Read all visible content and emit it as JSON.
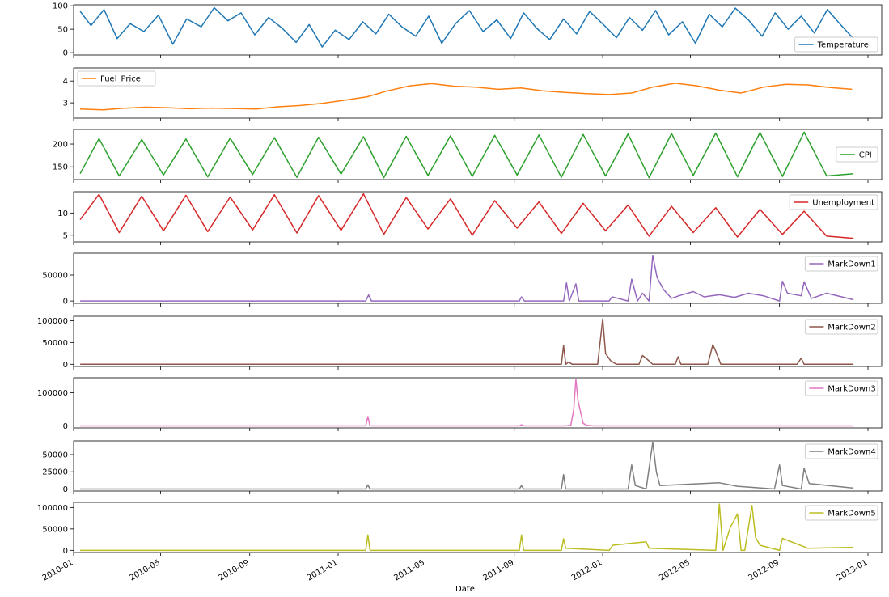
{
  "chart_data": {
    "type": "line",
    "shared_x": {
      "scale": "date",
      "xlim": [
        "2010-01-01",
        "2013-01-20"
      ],
      "ticks": [
        "2010-01-01",
        "2010-05-01",
        "2010-09-01",
        "2011-01-01",
        "2011-05-01",
        "2011-09-01",
        "2012-01-01",
        "2012-05-01",
        "2012-09-01",
        "2013-01-01"
      ],
      "tick_labels": [
        "2010-01",
        "2010-05",
        "2010-09",
        "2011-01",
        "2011-05",
        "2011-09",
        "2012-01",
        "2012-05",
        "2012-09",
        "2013-01"
      ],
      "xlabel": "Date"
    },
    "legend_placement": "per-subplot",
    "grid": false,
    "subplots": [
      {
        "name": "Temperature",
        "color": "#1f77b4",
        "legend": "lower-right",
        "ylim": [
          -5,
          102
        ],
        "yticks": [
          0,
          50,
          100
        ],
        "ytick_labels": [
          "0",
          "50",
          "100"
        ],
        "x": [
          "2010-01-10",
          "2010-01-25",
          "2010-02-12",
          "2010-03-02",
          "2010-03-20",
          "2010-04-08",
          "2010-04-28",
          "2010-05-18",
          "2010-06-06",
          "2010-06-26",
          "2010-07-14",
          "2010-08-02",
          "2010-08-20",
          "2010-09-08",
          "2010-09-27",
          "2010-10-16",
          "2010-11-04",
          "2010-11-22",
          "2010-12-10",
          "2010-12-28",
          "2011-01-16",
          "2011-02-04",
          "2011-02-22",
          "2011-03-12",
          "2011-03-30",
          "2011-04-18",
          "2011-05-06",
          "2011-05-24",
          "2011-06-12",
          "2011-07-01",
          "2011-07-20",
          "2011-08-08",
          "2011-08-27",
          "2011-09-14",
          "2011-10-02",
          "2011-10-20",
          "2011-11-08",
          "2011-11-26",
          "2011-12-14",
          "2012-01-02",
          "2012-01-20",
          "2012-02-07",
          "2012-02-25",
          "2012-03-14",
          "2012-04-01",
          "2012-04-20",
          "2012-05-08",
          "2012-05-27",
          "2012-06-14",
          "2012-07-02",
          "2012-07-20",
          "2012-08-08",
          "2012-08-26",
          "2012-09-13",
          "2012-10-01",
          "2012-10-19",
          "2012-11-06",
          "2012-11-24",
          "2012-12-12"
        ],
        "values": [
          88,
          58,
          92,
          30,
          62,
          45,
          80,
          18,
          72,
          55,
          96,
          68,
          85,
          38,
          75,
          52,
          22,
          60,
          12,
          48,
          28,
          66,
          40,
          82,
          55,
          35,
          78,
          20,
          62,
          90,
          45,
          70,
          30,
          85,
          52,
          28,
          72,
          40,
          88,
          60,
          32,
          75,
          48,
          90,
          38,
          66,
          20,
          82,
          55,
          95,
          70,
          35,
          85,
          50,
          78,
          42,
          92,
          60,
          30
        ]
      },
      {
        "name": "Fuel_Price",
        "color": "#ff7f0e",
        "legend": "upper-left",
        "ylim": [
          2.3,
          4.6
        ],
        "yticks": [
          3,
          4
        ],
        "ytick_labels": [
          "3",
          "4"
        ],
        "x": [
          "2010-01-10",
          "2010-02-10",
          "2010-03-10",
          "2010-04-10",
          "2010-05-10",
          "2010-06-10",
          "2010-07-10",
          "2010-08-10",
          "2010-09-10",
          "2010-10-10",
          "2010-11-10",
          "2010-12-10",
          "2011-01-10",
          "2011-02-10",
          "2011-03-10",
          "2011-04-10",
          "2011-05-10",
          "2011-06-10",
          "2011-07-10",
          "2011-08-10",
          "2011-09-10",
          "2011-10-10",
          "2011-11-10",
          "2011-12-10",
          "2012-01-10",
          "2012-02-10",
          "2012-03-10",
          "2012-04-10",
          "2012-05-10",
          "2012-06-10",
          "2012-07-10",
          "2012-08-10",
          "2012-09-10",
          "2012-10-10",
          "2012-11-10",
          "2012-12-10"
        ],
        "values": [
          2.72,
          2.68,
          2.75,
          2.8,
          2.78,
          2.73,
          2.76,
          2.74,
          2.72,
          2.82,
          2.88,
          2.98,
          3.12,
          3.28,
          3.55,
          3.78,
          3.88,
          3.76,
          3.72,
          3.62,
          3.68,
          3.55,
          3.48,
          3.42,
          3.38,
          3.45,
          3.72,
          3.9,
          3.78,
          3.58,
          3.45,
          3.72,
          3.85,
          3.82,
          3.7,
          3.62
        ]
      },
      {
        "name": "CPI",
        "color": "#2ca02c",
        "legend": "right",
        "ylim": [
          122,
          232
        ],
        "yticks": [
          150,
          200
        ],
        "ytick_labels": [
          "150",
          "200"
        ],
        "x": [
          "2010-01-10",
          "2010-02-05",
          "2010-03-05",
          "2010-04-05",
          "2010-05-05",
          "2010-06-05",
          "2010-07-05",
          "2010-08-05",
          "2010-09-05",
          "2010-10-05",
          "2010-11-05",
          "2010-12-05",
          "2011-01-05",
          "2011-02-05",
          "2011-03-05",
          "2011-04-05",
          "2011-05-05",
          "2011-06-05",
          "2011-07-05",
          "2011-08-05",
          "2011-09-05",
          "2011-10-05",
          "2011-11-05",
          "2011-12-05",
          "2012-01-05",
          "2012-02-05",
          "2012-03-05",
          "2012-04-05",
          "2012-05-05",
          "2012-06-05",
          "2012-07-05",
          "2012-08-05",
          "2012-09-05",
          "2012-10-05",
          "2012-11-05",
          "2012-12-12"
        ],
        "values": [
          135,
          212,
          130,
          210,
          132,
          211,
          128,
          213,
          133,
          214,
          127,
          215,
          134,
          216,
          126,
          217,
          131,
          218,
          129,
          219,
          132,
          220,
          127,
          221,
          130,
          222,
          126,
          223,
          131,
          224,
          128,
          225,
          129,
          226,
          130,
          135
        ]
      },
      {
        "name": "Unemployment",
        "color": "#d62728",
        "legend": "upper-right",
        "ylim": [
          3.5,
          14.8
        ],
        "yticks": [
          5,
          10
        ],
        "ytick_labels": [
          "5",
          "10"
        ],
        "x": [
          "2010-01-10",
          "2010-02-05",
          "2010-03-05",
          "2010-04-05",
          "2010-05-05",
          "2010-06-05",
          "2010-07-05",
          "2010-08-05",
          "2010-09-05",
          "2010-10-05",
          "2010-11-05",
          "2010-12-05",
          "2011-01-05",
          "2011-02-05",
          "2011-03-05",
          "2011-04-05",
          "2011-05-05",
          "2011-06-05",
          "2011-07-05",
          "2011-08-05",
          "2011-09-05",
          "2011-10-05",
          "2011-11-05",
          "2011-12-05",
          "2012-01-05",
          "2012-02-05",
          "2012-03-05",
          "2012-04-05",
          "2012-05-05",
          "2012-06-05",
          "2012-07-05",
          "2012-08-05",
          "2012-09-05",
          "2012-10-05",
          "2012-11-05",
          "2012-12-12"
        ],
        "values": [
          8.5,
          14.2,
          5.6,
          13.8,
          6.0,
          14.0,
          5.8,
          13.6,
          6.2,
          14.1,
          5.5,
          13.9,
          6.1,
          14.3,
          5.2,
          13.5,
          6.4,
          13.2,
          5.0,
          12.8,
          6.6,
          12.5,
          5.4,
          12.2,
          6.0,
          11.8,
          4.8,
          11.5,
          5.6,
          11.2,
          4.6,
          10.8,
          5.2,
          10.4,
          4.8,
          4.3
        ]
      },
      {
        "name": "MarkDown1",
        "color": "#9467bd",
        "legend": "upper-right",
        "ylim": [
          -4500,
          92000
        ],
        "yticks": [
          0,
          50000
        ],
        "ytick_labels": [
          "0",
          "50000"
        ],
        "x": [
          "2010-01-10",
          "2011-02-08",
          "2011-02-12",
          "2011-02-16",
          "2011-09-08",
          "2011-09-11",
          "2011-09-15",
          "2011-11-08",
          "2011-11-12",
          "2011-11-16",
          "2011-11-25",
          "2011-11-29",
          "2011-12-10",
          "2012-01-10",
          "2012-01-14",
          "2012-02-05",
          "2012-02-10",
          "2012-02-18",
          "2012-02-25",
          "2012-03-05",
          "2012-03-10",
          "2012-03-16",
          "2012-03-25",
          "2012-04-05",
          "2012-04-15",
          "2012-05-05",
          "2012-05-20",
          "2012-06-10",
          "2012-07-01",
          "2012-07-20",
          "2012-08-10",
          "2012-09-01",
          "2012-09-05",
          "2012-09-12",
          "2012-10-01",
          "2012-10-05",
          "2012-10-15",
          "2012-11-05",
          "2012-12-12"
        ],
        "values": [
          0,
          0,
          11500,
          0,
          0,
          8000,
          0,
          0,
          35000,
          0,
          33000,
          0,
          0,
          0,
          8000,
          0,
          42000,
          0,
          15000,
          0,
          88000,
          45000,
          22000,
          5000,
          10000,
          18000,
          8000,
          12000,
          7000,
          15000,
          10000,
          0,
          38000,
          15000,
          10000,
          37000,
          5000,
          15000,
          2500
        ]
      },
      {
        "name": "MarkDown2",
        "color": "#8c564b",
        "legend": "upper-right",
        "ylim": [
          -5000,
          110000
        ],
        "yticks": [
          0,
          50000,
          100000
        ],
        "ytick_labels": [
          "0",
          "50000",
          "100000"
        ],
        "x": [
          "2010-01-10",
          "2011-11-05",
          "2011-11-08",
          "2011-11-11",
          "2011-11-15",
          "2011-11-20",
          "2011-12-25",
          "2012-01-01",
          "2012-01-05",
          "2012-01-12",
          "2012-01-20",
          "2012-02-20",
          "2012-02-25",
          "2012-03-02",
          "2012-03-10",
          "2012-04-10",
          "2012-04-14",
          "2012-04-18",
          "2012-05-25",
          "2012-06-01",
          "2012-06-05",
          "2012-06-12",
          "2012-09-25",
          "2012-10-01",
          "2012-10-05",
          "2012-12-12"
        ],
        "values": [
          0,
          0,
          43000,
          0,
          5000,
          0,
          0,
          104000,
          25000,
          8000,
          0,
          0,
          20000,
          12000,
          0,
          0,
          17000,
          0,
          0,
          45000,
          30000,
          0,
          0,
          14000,
          0,
          0
        ]
      },
      {
        "name": "MarkDown3",
        "color": "#e377c2",
        "legend": "upper-right",
        "ylim": [
          -6000,
          145000
        ],
        "yticks": [
          0,
          100000
        ],
        "ytick_labels": [
          "0",
          "100000"
        ],
        "x": [
          "2010-01-10",
          "2011-02-08",
          "2011-02-11",
          "2011-02-14",
          "2011-09-08",
          "2011-09-11",
          "2011-09-14",
          "2011-11-10",
          "2011-11-18",
          "2011-11-22",
          "2011-11-25",
          "2011-11-28",
          "2011-12-05",
          "2011-12-10",
          "2011-12-20",
          "2012-12-12"
        ],
        "values": [
          0,
          0,
          28000,
          0,
          0,
          3500,
          0,
          0,
          2000,
          48000,
          140000,
          75000,
          8000,
          2000,
          0,
          0
        ]
      },
      {
        "name": "MarkDown4",
        "color": "#7f7f7f",
        "legend": "upper-right",
        "ylim": [
          -3000,
          70000
        ],
        "yticks": [
          0,
          25000,
          50000
        ],
        "ytick_labels": [
          "0",
          "25000",
          "50000"
        ],
        "x": [
          "2010-01-10",
          "2011-02-08",
          "2011-02-11",
          "2011-02-14",
          "2011-09-08",
          "2011-09-11",
          "2011-09-14",
          "2011-11-05",
          "2011-11-08",
          "2011-11-11",
          "2012-02-05",
          "2012-02-10",
          "2012-02-15",
          "2012-03-01",
          "2012-03-10",
          "2012-03-15",
          "2012-03-20",
          "2012-06-10",
          "2012-07-05",
          "2012-08-25",
          "2012-09-01",
          "2012-09-05",
          "2012-10-01",
          "2012-10-05",
          "2012-10-12",
          "2012-12-12"
        ],
        "values": [
          0,
          0,
          6000,
          0,
          0,
          5000,
          0,
          0,
          21000,
          0,
          0,
          35000,
          5000,
          0,
          68000,
          25000,
          5000,
          9000,
          4000,
          0,
          35000,
          5000,
          0,
          30000,
          8000,
          1200
        ]
      },
      {
        "name": "MarkDown5",
        "color": "#bcbd22",
        "legend": "upper-right",
        "ylim": [
          -5000,
          112000
        ],
        "yticks": [
          0,
          50000,
          100000
        ],
        "ytick_labels": [
          "0",
          "50000",
          "100000"
        ],
        "x": [
          "2010-01-10",
          "2011-02-08",
          "2011-02-11",
          "2011-02-14",
          "2011-09-08",
          "2011-09-11",
          "2011-09-14",
          "2011-11-05",
          "2011-11-08",
          "2011-11-11",
          "2012-01-10",
          "2012-01-15",
          "2012-03-01",
          "2012-03-05",
          "2012-06-05",
          "2012-06-10",
          "2012-06-15",
          "2012-06-25",
          "2012-07-05",
          "2012-07-10",
          "2012-07-15",
          "2012-07-25",
          "2012-07-30",
          "2012-08-05",
          "2012-09-01",
          "2012-09-05",
          "2012-10-10",
          "2012-12-12"
        ],
        "values": [
          0,
          0,
          36000,
          0,
          0,
          36000,
          0,
          0,
          27000,
          5000,
          0,
          12000,
          20000,
          5000,
          0,
          108000,
          0,
          53000,
          85000,
          0,
          0,
          105000,
          30000,
          12000,
          0,
          28000,
          5000,
          7000
        ]
      }
    ]
  }
}
